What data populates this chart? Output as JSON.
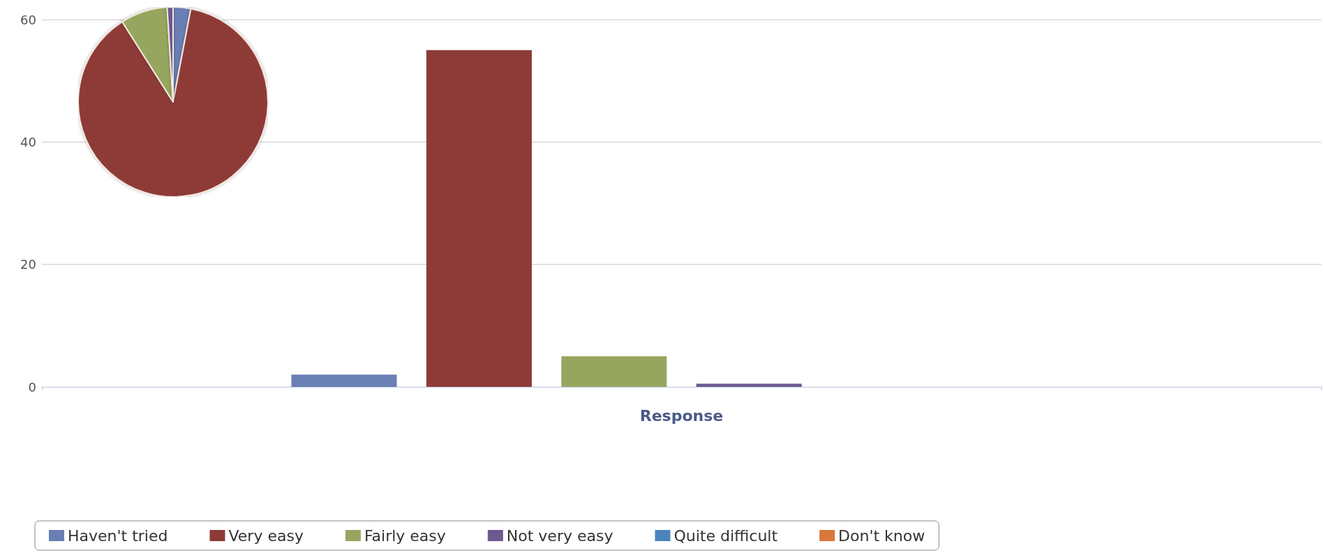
{
  "chart_data": [
    {
      "type": "bar",
      "xlabel": "Response",
      "categories": [
        null
      ],
      "ylim": [
        0,
        60
      ],
      "yticks": [
        0,
        20,
        40,
        60
      ],
      "grid": "y",
      "legend": "bottom",
      "series": [
        {
          "name": "Haven't tried",
          "color": "#6a7fb5",
          "values": [
            2
          ]
        },
        {
          "name": "Very easy",
          "color": "#8e3b37",
          "values": [
            55
          ]
        },
        {
          "name": "Fairly easy",
          "color": "#97a65f",
          "values": [
            5
          ]
        },
        {
          "name": "Not very easy",
          "color": "#6b5a8e",
          "values": [
            0.5
          ]
        },
        {
          "name": "Quite difficult",
          "color": "#4a84bb",
          "values": [
            0
          ]
        },
        {
          "name": "Don't know",
          "color": "#d9783a",
          "values": [
            0
          ]
        }
      ]
    },
    {
      "type": "pie",
      "categories": [
        null,
        null,
        null,
        null,
        null,
        null
      ],
      "values": [
        3,
        88,
        8,
        1,
        0,
        0
      ],
      "colors": [
        "#6a7fb5",
        "#8e3b37",
        "#97a65f",
        "#6b5a8e",
        "#4a84bb",
        "#d9783a"
      ],
      "legend": false
    }
  ]
}
